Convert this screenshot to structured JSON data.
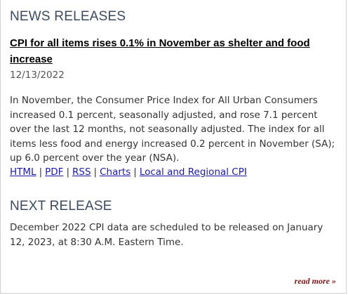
{
  "news": {
    "heading": "NEWS RELEASES",
    "headline": "CPI for all items rises 0.1% in November as shelter and food increase",
    "date": "12/13/2022",
    "body": "In November, the Consumer Price Index for All Urban Consumers increased 0.1 percent, seasonally adjusted, and rose 7.1 percent over the last 12 months, not seasonally adjusted. The index for all items less food and energy increased 0.2 percent in November (SA); up 6.0 percent over the year (NSA).",
    "links": {
      "html": "HTML",
      "pdf": "PDF",
      "rss": "RSS",
      "charts": "Charts",
      "regional": "Local and Regional CPI",
      "separator": "|"
    }
  },
  "next_release": {
    "heading": "NEXT RELEASE",
    "body": "December 2022 CPI data are scheduled to be released on January 12, 2023, at 8:30 A.M. Eastern Time."
  },
  "read_more": "read more »"
}
